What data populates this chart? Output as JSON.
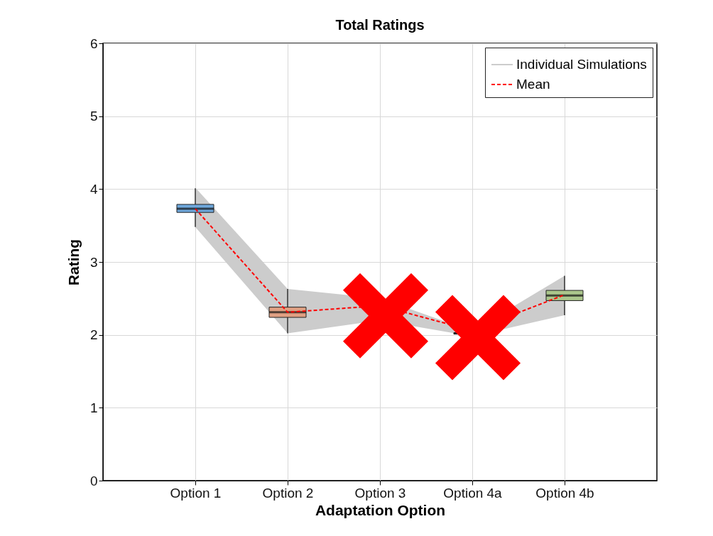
{
  "chart_data": {
    "type": "box",
    "title": "Total Ratings",
    "xlabel": "Adaptation Option",
    "ylabel": "Rating",
    "categories": [
      "Option 1",
      "Option 2",
      "Option 3",
      "Option 4a",
      "Option 4b"
    ],
    "boxes": [
      {
        "low": 3.48,
        "q1": 3.68,
        "median": 3.73,
        "q3": 3.79,
        "high": 4.01
      },
      {
        "low": 2.02,
        "q1": 2.24,
        "median": 2.31,
        "q3": 2.38,
        "high": 2.63
      },
      {
        "low": 2.3,
        "q1": 2.38,
        "median": 2.41,
        "q3": 2.44,
        "high": 2.5
      },
      {
        "low": 2.0,
        "q1": 2.01,
        "median": 2.02,
        "q3": 2.03,
        "high": 2.05
      },
      {
        "low": 2.27,
        "q1": 2.47,
        "median": 2.54,
        "q3": 2.61,
        "high": 2.81
      }
    ],
    "colors": [
      "#6fa8dc",
      "#e0a083",
      "#e8c878",
      "#6e5a8a",
      "#abc68c"
    ],
    "series": [
      {
        "name": "Individual Simulations",
        "type": "area",
        "color": "#cccccc",
        "values": [
          null,
          null,
          null,
          null,
          null
        ],
        "lower": [
          3.48,
          2.02,
          2.2,
          1.98,
          2.27
        ],
        "upper": [
          4.02,
          2.63,
          2.5,
          2.05,
          2.81
        ]
      },
      {
        "name": "Mean",
        "type": "line",
        "color": "#ff0000",
        "line_style": "dashed",
        "values": [
          3.73,
          2.31,
          2.4,
          2.06,
          2.55
        ]
      }
    ],
    "ylim": [
      0,
      6
    ],
    "yticks": [
      0,
      1,
      2,
      3,
      4,
      5,
      6
    ],
    "grid": true,
    "legend": "top right"
  }
}
